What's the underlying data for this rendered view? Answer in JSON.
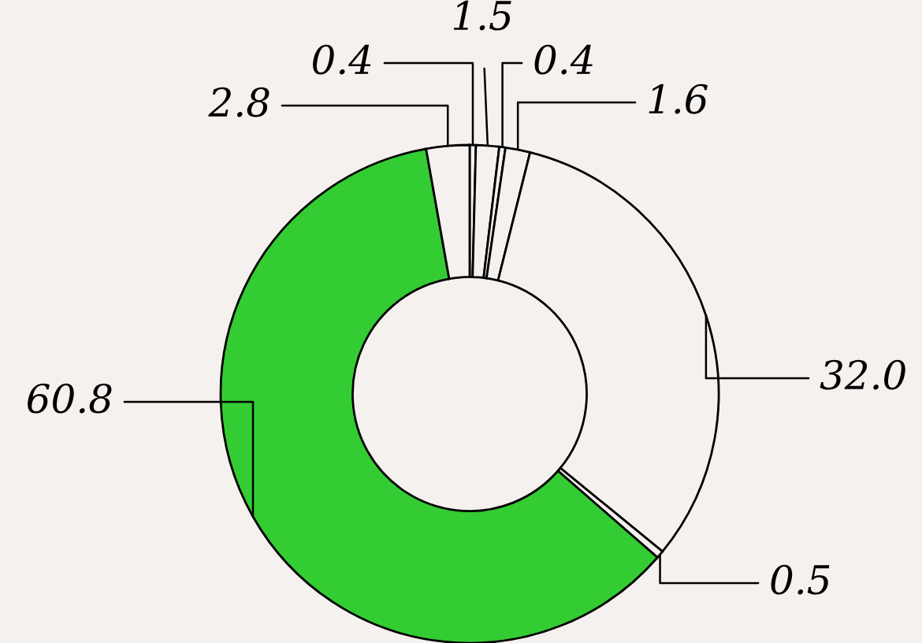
{
  "chart_data": {
    "type": "donut",
    "categories": [
      null,
      null,
      null,
      null,
      null,
      null,
      null,
      null
    ],
    "values": [
      0.4,
      1.5,
      0.4,
      1.6,
      32.0,
      0.5,
      60.8,
      2.8
    ],
    "colors": [
      "#f5f1ef",
      "#f5f1ef",
      "#f5f1ef",
      "#f5f1ef",
      "#f5f1ef",
      "#f5f1ef",
      "#33cc33",
      "#f5f1ef"
    ],
    "value_labels": [
      "0.4",
      "1.5",
      "0.4",
      "1.6",
      "32.0",
      "0.5",
      "60.8",
      "2.8"
    ]
  }
}
